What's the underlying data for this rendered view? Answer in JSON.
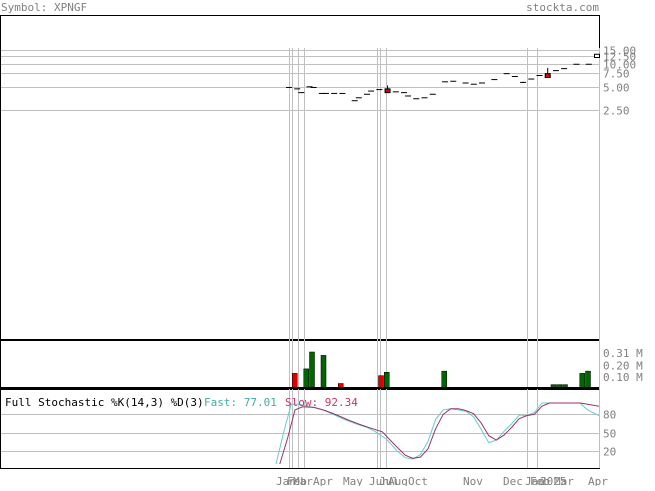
{
  "header": {
    "symbol_text": "Symbol: XPNGF",
    "site_text": "stockta.com"
  },
  "stochastic_panel": {
    "label": "Full Stochastic %K(14,3) %D(3)",
    "fast_label": "Fast: 77.01",
    "slow_label": "Slow: 92.34"
  },
  "colors": {
    "header_text": "#808080",
    "fast_line": "#66cccc",
    "slow_line": "#993366",
    "fast_text": "#44aaaa",
    "slow_text": "#cc3366",
    "volume_up": "#006600",
    "volume_down": "#dd0000",
    "grid": "#c0c0c0",
    "axis_text": "#808080"
  },
  "chart_data": [
    {
      "type": "candlestick",
      "scale": "log",
      "ylim": [
        0.85,
        19
      ],
      "y_ticks": [
        {
          "value": 15.0,
          "label": "15.00"
        },
        {
          "value": 12.5,
          "label": "12.50"
        },
        {
          "value": 10.0,
          "label": "10.00"
        },
        {
          "value": 7.5,
          "label": "7.50"
        },
        {
          "value": 5.0,
          "label": "5.00"
        },
        {
          "value": 2.5,
          "label": "2.50"
        }
      ],
      "candles": [
        {
          "t": 0,
          "o": 4.9,
          "h": 4.9,
          "l": 4.9,
          "c": 4.9
        },
        {
          "t": 2,
          "o": 4.7,
          "h": 4.7,
          "l": 4.7,
          "c": 4.7
        },
        {
          "t": 3,
          "o": 4.2,
          "h": 4.2,
          "l": 4.2,
          "c": 4.2
        },
        {
          "t": 5,
          "o": 5.0,
          "h": 5.0,
          "l": 5.0,
          "c": 5.0
        },
        {
          "t": 6,
          "o": 4.9,
          "h": 4.9,
          "l": 4.9,
          "c": 4.9
        },
        {
          "t": 8,
          "o": 4.1,
          "h": 4.1,
          "l": 4.1,
          "c": 4.1
        },
        {
          "t": 9,
          "o": 4.1,
          "h": 4.1,
          "l": 4.1,
          "c": 4.1
        },
        {
          "t": 11,
          "o": 4.1,
          "h": 4.1,
          "l": 4.1,
          "c": 4.1
        },
        {
          "t": 13,
          "o": 4.1,
          "h": 4.1,
          "l": 4.1,
          "c": 4.1
        },
        {
          "t": 16,
          "o": 3.3,
          "h": 3.3,
          "l": 3.3,
          "c": 3.3
        },
        {
          "t": 17,
          "o": 3.6,
          "h": 3.6,
          "l": 3.6,
          "c": 3.6
        },
        {
          "t": 19,
          "o": 4.0,
          "h": 4.0,
          "l": 4.0,
          "c": 4.0
        },
        {
          "t": 20,
          "o": 4.4,
          "h": 4.4,
          "l": 4.4,
          "c": 4.4
        },
        {
          "t": 22,
          "o": 4.6,
          "h": 4.6,
          "l": 4.6,
          "c": 4.6
        },
        {
          "t": 24,
          "o": 4.7,
          "h": 5.2,
          "l": 4.2,
          "c": 4.2
        },
        {
          "t": 26,
          "o": 4.3,
          "h": 4.3,
          "l": 4.3,
          "c": 4.3
        },
        {
          "t": 28,
          "o": 4.2,
          "h": 4.2,
          "l": 4.2,
          "c": 4.2
        },
        {
          "t": 29,
          "o": 3.8,
          "h": 3.8,
          "l": 3.8,
          "c": 3.8
        },
        {
          "t": 31,
          "o": 3.5,
          "h": 3.5,
          "l": 3.5,
          "c": 3.5
        },
        {
          "t": 33,
          "o": 3.6,
          "h": 3.6,
          "l": 3.6,
          "c": 3.6
        },
        {
          "t": 35,
          "o": 4.0,
          "h": 4.0,
          "l": 4.0,
          "c": 4.0
        },
        {
          "t": 38,
          "o": 5.8,
          "h": 5.8,
          "l": 5.8,
          "c": 5.8
        },
        {
          "t": 40,
          "o": 5.9,
          "h": 5.9,
          "l": 5.9,
          "c": 5.9
        },
        {
          "t": 43,
          "o": 5.6,
          "h": 5.6,
          "l": 5.6,
          "c": 5.6
        },
        {
          "t": 45,
          "o": 5.4,
          "h": 5.4,
          "l": 5.4,
          "c": 5.4
        },
        {
          "t": 47,
          "o": 5.6,
          "h": 5.6,
          "l": 5.6,
          "c": 5.6
        },
        {
          "t": 50,
          "o": 6.2,
          "h": 6.2,
          "l": 6.2,
          "c": 6.2
        },
        {
          "t": 53,
          "o": 7.4,
          "h": 7.4,
          "l": 7.4,
          "c": 7.4
        },
        {
          "t": 55,
          "o": 6.8,
          "h": 6.8,
          "l": 6.8,
          "c": 6.8
        },
        {
          "t": 57,
          "o": 5.7,
          "h": 5.8,
          "l": 5.6,
          "c": 5.7
        },
        {
          "t": 59,
          "o": 6.3,
          "h": 6.3,
          "l": 6.3,
          "c": 6.3
        },
        {
          "t": 61,
          "o": 7.0,
          "h": 7.0,
          "l": 7.0,
          "c": 7.0
        },
        {
          "t": 63,
          "o": 7.4,
          "h": 8.8,
          "l": 6.6,
          "c": 6.6
        },
        {
          "t": 65,
          "o": 8.1,
          "h": 8.1,
          "l": 8.1,
          "c": 8.1
        },
        {
          "t": 67,
          "o": 8.6,
          "h": 8.6,
          "l": 8.6,
          "c": 8.6
        },
        {
          "t": 70,
          "o": 9.8,
          "h": 9.8,
          "l": 9.8,
          "c": 9.8
        },
        {
          "t": 73,
          "o": 9.8,
          "h": 9.8,
          "l": 9.8,
          "c": 9.8
        },
        {
          "t": 75,
          "o": 12.0,
          "h": 13.2,
          "l": 12.0,
          "c": 13.2
        }
      ]
    },
    {
      "type": "bar",
      "y_ticks": [
        {
          "value": 0.31,
          "label": "0.31 M"
        },
        {
          "value": 0.2,
          "label": "0.20 M"
        },
        {
          "value": 0.1,
          "label": "0.10 M"
        }
      ],
      "ylim": [
        0,
        0.4
      ],
      "bars": [
        {
          "t": 1,
          "v": 0.13,
          "up": false
        },
        {
          "t": 3,
          "v": 0.17,
          "up": true
        },
        {
          "t": 4,
          "v": 0.32,
          "up": true
        },
        {
          "t": 6,
          "v": 0.29,
          "up": true
        },
        {
          "t": 9,
          "v": 0.04,
          "up": false
        },
        {
          "t": 16,
          "v": 0.11,
          "up": false
        },
        {
          "t": 17,
          "v": 0.14,
          "up": true
        },
        {
          "t": 27,
          "v": 0.15,
          "up": true
        },
        {
          "t": 46,
          "v": 0.03,
          "up": true
        },
        {
          "t": 47,
          "v": 0.03,
          "up": true
        },
        {
          "t": 48,
          "v": 0.03,
          "up": true
        },
        {
          "t": 51,
          "v": 0.13,
          "up": true
        },
        {
          "t": 52,
          "v": 0.15,
          "up": true
        }
      ]
    },
    {
      "type": "line",
      "ylim": [
        0,
        105
      ],
      "y_ticks": [
        {
          "value": 80,
          "label": "80"
        },
        {
          "value": 50,
          "label": "50"
        },
        {
          "value": 20,
          "label": "20"
        }
      ],
      "series": [
        {
          "key": "fast",
          "points": [
            [
              0,
              0
            ],
            [
              2,
              50
            ],
            [
              4,
              95
            ],
            [
              6,
              95
            ],
            [
              9,
              91
            ],
            [
              12,
              87
            ],
            [
              15,
              79
            ],
            [
              18,
              71
            ],
            [
              21,
              64
            ],
            [
              24,
              58
            ],
            [
              26,
              52
            ],
            [
              29,
              40
            ],
            [
              32,
              20
            ],
            [
              34,
              10
            ],
            [
              36,
              8
            ],
            [
              38,
              15
            ],
            [
              40,
              36
            ],
            [
              42,
              71
            ],
            [
              44,
              86
            ],
            [
              46,
              88
            ],
            [
              48,
              86
            ],
            [
              50,
              84
            ],
            [
              52,
              75
            ],
            [
              54,
              55
            ],
            [
              56,
              34
            ],
            [
              58,
              38
            ],
            [
              60,
              52
            ],
            [
              62,
              64
            ],
            [
              64,
              78
            ],
            [
              66,
              77
            ],
            [
              68,
              82
            ],
            [
              70,
              97
            ],
            [
              72,
              97
            ],
            [
              74,
              97
            ],
            [
              76,
              97
            ],
            [
              78,
              97
            ],
            [
              80,
              97
            ],
            [
              82,
              86
            ],
            [
              85,
              77
            ]
          ]
        },
        {
          "key": "slow",
          "points": [
            [
              1,
              0
            ],
            [
              3,
              40
            ],
            [
              5,
              86
            ],
            [
              7,
              91
            ],
            [
              10,
              90
            ],
            [
              13,
              85
            ],
            [
              16,
              78
            ],
            [
              19,
              70
            ],
            [
              22,
              63
            ],
            [
              25,
              57
            ],
            [
              28,
              51
            ],
            [
              31,
              32
            ],
            [
              34,
              14
            ],
            [
              36,
              9
            ],
            [
              38,
              11
            ],
            [
              40,
              24
            ],
            [
              42,
              56
            ],
            [
              44,
              79
            ],
            [
              46,
              88
            ],
            [
              48,
              88
            ],
            [
              50,
              85
            ],
            [
              52,
              80
            ],
            [
              54,
              65
            ],
            [
              56,
              45
            ],
            [
              58,
              38
            ],
            [
              60,
              46
            ],
            [
              62,
              58
            ],
            [
              64,
              72
            ],
            [
              66,
              77
            ],
            [
              68,
              79
            ],
            [
              70,
              92
            ],
            [
              72,
              97
            ],
            [
              74,
              97
            ],
            [
              76,
              97
            ],
            [
              78,
              97
            ],
            [
              80,
              97
            ],
            [
              82,
              95
            ],
            [
              85,
              92
            ]
          ]
        }
      ]
    }
  ],
  "x_axis": {
    "labels": [
      "Jan",
      "Feb",
      "Mar",
      "Apr",
      "May",
      "Jun",
      "Jul",
      "Aug",
      "Oct",
      "Nov",
      "Dec",
      "Jan",
      "Feb",
      "2025",
      "Mar",
      "Apr"
    ]
  }
}
